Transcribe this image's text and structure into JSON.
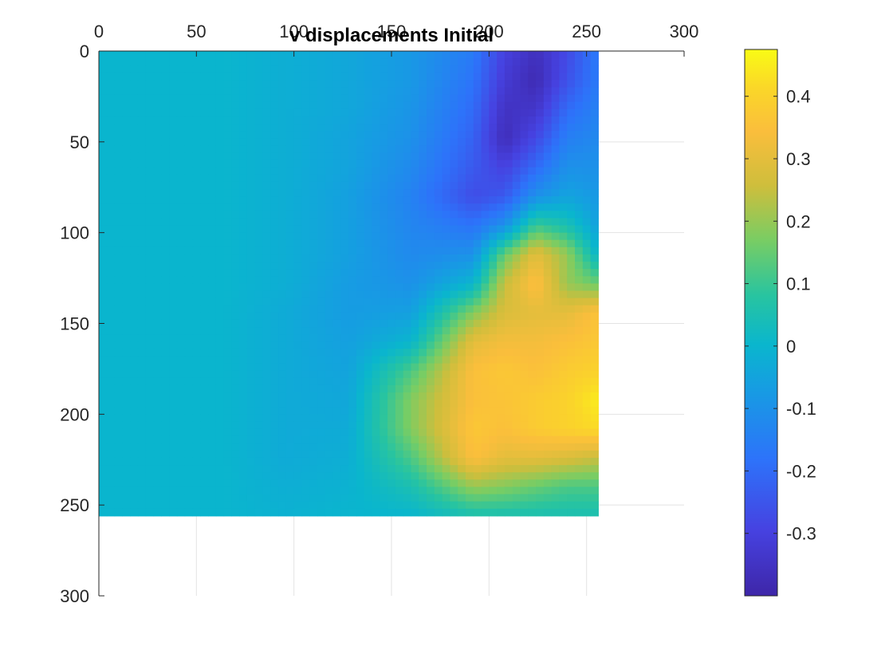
{
  "chart_data": {
    "type": "heatmap",
    "title": "v displacements Initial",
    "xlabel": "",
    "ylabel": "",
    "x_axis_location": "top",
    "y_axis_direction": "reversed",
    "xlim": [
      0,
      300
    ],
    "ylim": [
      0,
      300
    ],
    "x_ticks": [
      0,
      50,
      100,
      150,
      200,
      250,
      300
    ],
    "y_ticks": [
      0,
      50,
      100,
      150,
      200,
      250,
      300
    ],
    "grid": true,
    "data_extent": {
      "x": [
        0,
        256
      ],
      "y": [
        0,
        256
      ]
    },
    "colormap": "parula",
    "colorbar": {
      "location": "right",
      "range": [
        -0.4,
        0.475
      ],
      "ticks": [
        -0.3,
        -0.2,
        -0.1,
        0,
        0.1,
        0.2,
        0.3,
        0.4
      ],
      "tick_labels": [
        "-0.3",
        "-0.2",
        "-0.1",
        "0",
        "0.1",
        "0.2",
        "0.3",
        "0.4"
      ]
    },
    "grid_x": [
      0,
      32,
      64,
      96,
      128,
      160,
      192,
      208,
      224,
      240,
      256
    ],
    "grid_y": [
      0,
      16,
      32,
      48,
      64,
      80,
      96,
      112,
      128,
      144,
      160,
      176,
      192,
      208,
      224,
      240,
      256
    ],
    "values": [
      [
        0.0,
        0.0,
        0.0,
        -0.02,
        -0.04,
        -0.08,
        -0.16,
        -0.3,
        -0.36,
        -0.28,
        -0.16
      ],
      [
        0.0,
        0.0,
        0.0,
        -0.02,
        -0.04,
        -0.08,
        -0.18,
        -0.32,
        -0.38,
        -0.26,
        -0.16
      ],
      [
        0.0,
        0.0,
        0.0,
        -0.02,
        -0.04,
        -0.09,
        -0.2,
        -0.35,
        -0.34,
        -0.2,
        -0.14
      ],
      [
        0.0,
        0.0,
        0.0,
        -0.02,
        -0.05,
        -0.1,
        -0.22,
        -0.37,
        -0.28,
        -0.15,
        -0.12
      ],
      [
        0.0,
        0.0,
        0.0,
        -0.02,
        -0.05,
        -0.12,
        -0.24,
        -0.3,
        -0.2,
        -0.1,
        -0.1
      ],
      [
        0.0,
        0.0,
        0.0,
        -0.02,
        -0.06,
        -0.14,
        -0.27,
        -0.24,
        -0.1,
        -0.05,
        -0.08
      ],
      [
        0.0,
        0.0,
        0.0,
        -0.02,
        -0.06,
        -0.13,
        -0.18,
        -0.1,
        0.1,
        0.05,
        -0.06
      ],
      [
        0.0,
        0.0,
        0.0,
        -0.02,
        -0.06,
        -0.12,
        -0.1,
        0.15,
        0.3,
        0.2,
        0.0
      ],
      [
        0.0,
        0.0,
        0.0,
        -0.02,
        -0.07,
        -0.1,
        0.0,
        0.25,
        0.36,
        0.2,
        0.15
      ],
      [
        0.0,
        0.0,
        0.0,
        -0.03,
        -0.07,
        -0.06,
        0.18,
        0.28,
        0.3,
        0.3,
        0.36
      ],
      [
        0.0,
        0.0,
        0.0,
        -0.03,
        -0.06,
        0.0,
        0.3,
        0.33,
        0.33,
        0.35,
        0.37
      ],
      [
        0.0,
        0.0,
        0.0,
        -0.03,
        -0.05,
        0.12,
        0.35,
        0.37,
        0.35,
        0.38,
        0.4
      ],
      [
        0.0,
        0.0,
        0.0,
        -0.03,
        -0.04,
        0.18,
        0.35,
        0.36,
        0.38,
        0.4,
        0.45
      ],
      [
        0.0,
        0.0,
        0.0,
        -0.03,
        -0.03,
        0.18,
        0.37,
        0.35,
        0.38,
        0.4,
        0.42
      ],
      [
        0.0,
        0.0,
        0.0,
        -0.03,
        -0.02,
        0.12,
        0.35,
        0.3,
        0.3,
        0.28,
        0.25
      ],
      [
        0.0,
        0.0,
        0.0,
        -0.02,
        -0.01,
        0.05,
        0.2,
        0.18,
        0.15,
        0.12,
        0.12
      ],
      [
        0.0,
        0.0,
        0.0,
        -0.01,
        0.0,
        0.0,
        0.05,
        0.05,
        0.05,
        0.05,
        0.05
      ]
    ]
  }
}
